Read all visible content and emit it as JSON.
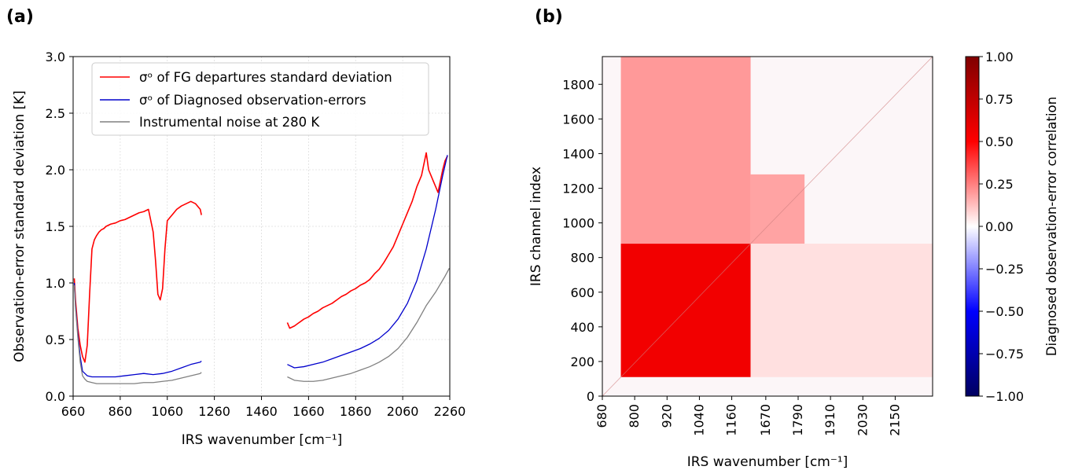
{
  "panels": {
    "a_label": "(a)",
    "b_label": "(b)"
  },
  "chart_data": [
    {
      "type": "line",
      "panel": "(a)",
      "xlabel": "IRS wavenumber [cm⁻¹]",
      "ylabel": "Observation-error standard deviation [K]",
      "xlim": [
        660,
        2260
      ],
      "ylim": [
        0.0,
        3.0
      ],
      "xticks": [
        660,
        860,
        1060,
        1260,
        1460,
        1660,
        1860,
        2060,
        2260
      ],
      "yticks": [
        0.0,
        0.5,
        1.0,
        1.5,
        2.0,
        2.5,
        3.0
      ],
      "grid": true,
      "legend_position": "top-center",
      "series": [
        {
          "name": "σᵒ of FG departures standard deviation",
          "color": "#ff0000",
          "segments": [
            {
              "x": [
                665,
                670,
                680,
                690,
                700,
                710,
                720,
                730,
                740,
                750,
                760,
                770,
                780,
                790,
                800,
                820,
                840,
                860,
                880,
                900,
                920,
                940,
                960,
                980,
                1000,
                1010,
                1020,
                1030,
                1040,
                1050,
                1060,
                1080,
                1100,
                1120,
                1140,
                1160,
                1180,
                1200,
                1205
              ],
              "y": [
                1.04,
                0.85,
                0.6,
                0.45,
                0.35,
                0.3,
                0.45,
                0.9,
                1.3,
                1.38,
                1.42,
                1.45,
                1.47,
                1.48,
                1.5,
                1.52,
                1.53,
                1.55,
                1.56,
                1.58,
                1.6,
                1.62,
                1.63,
                1.65,
                1.45,
                1.2,
                0.9,
                0.85,
                0.95,
                1.3,
                1.55,
                1.6,
                1.65,
                1.68,
                1.7,
                1.72,
                1.7,
                1.65,
                1.6
              ]
            },
            {
              "x": [
                1570,
                1580,
                1600,
                1620,
                1640,
                1660,
                1680,
                1700,
                1720,
                1740,
                1760,
                1780,
                1800,
                1820,
                1840,
                1860,
                1880,
                1900,
                1920,
                1940,
                1960,
                1980,
                2000,
                2020,
                2040,
                2060,
                2080,
                2100,
                2120,
                2140,
                2150,
                2160,
                2170,
                2180,
                2190,
                2200,
                2210,
                2220,
                2230,
                2240,
                2250
              ],
              "y": [
                0.65,
                0.6,
                0.62,
                0.65,
                0.68,
                0.7,
                0.73,
                0.75,
                0.78,
                0.8,
                0.82,
                0.85,
                0.88,
                0.9,
                0.93,
                0.95,
                0.98,
                1.0,
                1.03,
                1.08,
                1.12,
                1.18,
                1.25,
                1.32,
                1.42,
                1.52,
                1.62,
                1.72,
                1.85,
                1.95,
                2.05,
                2.15,
                2.0,
                1.95,
                1.9,
                1.85,
                1.8,
                1.9,
                2.0,
                2.08,
                2.12
              ]
            }
          ]
        },
        {
          "name": "σᵒ of Diagnosed observation-errors",
          "color": "#0000cc",
          "segments": [
            {
              "x": [
                665,
                670,
                680,
                690,
                700,
                710,
                720,
                740,
                760,
                800,
                840,
                880,
                920,
                960,
                1000,
                1040,
                1080,
                1120,
                1160,
                1200,
                1205
              ],
              "y": [
                1.0,
                0.8,
                0.55,
                0.35,
                0.22,
                0.2,
                0.18,
                0.17,
                0.17,
                0.17,
                0.17,
                0.18,
                0.19,
                0.2,
                0.19,
                0.2,
                0.22,
                0.25,
                0.28,
                0.3,
                0.31
              ]
            },
            {
              "x": [
                1570,
                1600,
                1640,
                1680,
                1720,
                1760,
                1800,
                1840,
                1880,
                1920,
                1960,
                2000,
                2040,
                2080,
                2120,
                2160,
                2200,
                2230,
                2250
              ],
              "y": [
                0.28,
                0.25,
                0.26,
                0.28,
                0.3,
                0.33,
                0.36,
                0.39,
                0.42,
                0.46,
                0.51,
                0.58,
                0.68,
                0.82,
                1.02,
                1.3,
                1.65,
                1.95,
                2.13
              ]
            }
          ]
        },
        {
          "name": "Instrumental noise at 280 K",
          "color": "#808080",
          "segments": [
            {
              "x": [
                665,
                670,
                680,
                690,
                700,
                710,
                720,
                740,
                760,
                800,
                840,
                880,
                920,
                960,
                1000,
                1040,
                1080,
                1120,
                1160,
                1200,
                1205
              ],
              "y": [
                0.98,
                0.78,
                0.52,
                0.3,
                0.18,
                0.15,
                0.13,
                0.12,
                0.11,
                0.11,
                0.11,
                0.11,
                0.11,
                0.12,
                0.12,
                0.13,
                0.14,
                0.16,
                0.18,
                0.2,
                0.21
              ]
            },
            {
              "x": [
                1570,
                1600,
                1640,
                1680,
                1720,
                1760,
                1800,
                1840,
                1880,
                1920,
                1960,
                2000,
                2040,
                2080,
                2120,
                2160,
                2200,
                2240,
                2258
              ],
              "y": [
                0.17,
                0.14,
                0.13,
                0.13,
                0.14,
                0.16,
                0.18,
                0.2,
                0.23,
                0.26,
                0.3,
                0.35,
                0.42,
                0.52,
                0.65,
                0.8,
                0.92,
                1.06,
                1.13
              ]
            }
          ]
        }
      ]
    },
    {
      "type": "heatmap",
      "panel": "(b)",
      "xlabel": "IRS wavenumber [cm⁻¹]",
      "ylabel": "IRS channel index",
      "colorbar_label": "Diagnosed observation-error correlation",
      "colormap": "seismic",
      "clim": [
        -1.0,
        1.0
      ],
      "xticklabels": [
        "680",
        "800",
        "920",
        "1040",
        "1160",
        "1670",
        "1790",
        "1910",
        "2030",
        "2150"
      ],
      "xtick_channels": [
        0,
        192,
        384,
        576,
        768,
        970,
        1162,
        1354,
        1546,
        1738
      ],
      "yticks": [
        0,
        200,
        400,
        600,
        800,
        1000,
        1200,
        1400,
        1600,
        1800
      ],
      "channel_range": [
        0,
        1960
      ],
      "colorbar_ticks": [
        "1.00",
        "0.75",
        "0.50",
        "0.25",
        "0.00",
        "−0.25",
        "−0.50",
        "−0.75",
        "−1.00"
      ],
      "blocks": [
        {
          "x": [
            110,
            880
          ],
          "y": [
            110,
            880
          ],
          "value": 0.55
        },
        {
          "x": [
            110,
            880
          ],
          "y": [
            880,
            1960
          ],
          "value": 0.2
        },
        {
          "x": [
            880,
            1200
          ],
          "y": [
            880,
            1280
          ],
          "value": 0.18
        },
        {
          "x": [
            880,
            1960
          ],
          "y": [
            110,
            880
          ],
          "value": 0.06
        }
      ]
    }
  ]
}
